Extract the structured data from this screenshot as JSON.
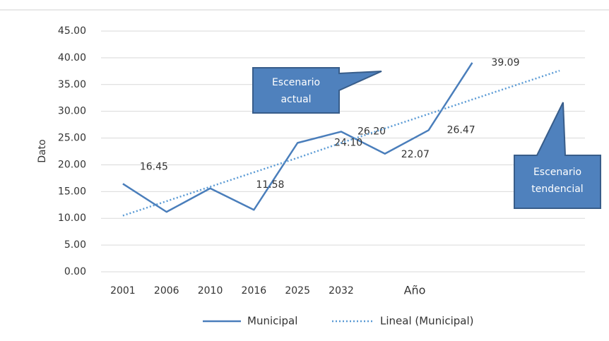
{
  "chart_data": {
    "type": "line",
    "categories": [
      "2001",
      "2006",
      "2010",
      "2016",
      "2025",
      "2032",
      null,
      null,
      null,
      null,
      null
    ],
    "series": [
      {
        "name": "Municipal",
        "color": "#4a7ebb",
        "style": "solid",
        "values": [
          16.45,
          11.2,
          15.6,
          11.58,
          24.1,
          26.2,
          22.07,
          26.47,
          39.09,
          null,
          null
        ],
        "value_labels": [
          "16.45",
          null,
          null,
          "11.58",
          "24.10",
          "26.20",
          "22.07",
          "26.47",
          "39.09",
          null,
          null
        ]
      },
      {
        "name": "Lineal (Municipal)",
        "color": "#5b9bd5",
        "style": "dotted",
        "values": [
          10.5,
          13.2,
          15.9,
          18.6,
          21.3,
          24.1,
          26.8,
          29.5,
          32.2,
          34.9,
          37.6
        ]
      }
    ],
    "ylabel": "Dato",
    "xlabel": "Año",
    "ylim": [
      0,
      45
    ],
    "yticks": [
      {
        "value": 0,
        "label": "0.00"
      },
      {
        "value": 5,
        "label": "5.00"
      },
      {
        "value": 10,
        "label": "10.00"
      },
      {
        "value": 15,
        "label": "15.00"
      },
      {
        "value": 20,
        "label": "20.00"
      },
      {
        "value": 25,
        "label": "25.00"
      },
      {
        "value": 30,
        "label": "30.00"
      },
      {
        "value": 35,
        "label": "35.00"
      },
      {
        "value": 40,
        "label": "40.00"
      },
      {
        "value": 45,
        "label": "45.00"
      }
    ],
    "grid": true,
    "legend": "bottom",
    "annotations": [
      {
        "text": [
          "Escenario",
          "actual"
        ]
      },
      {
        "text": [
          "Escenario",
          "tendencial"
        ]
      }
    ]
  }
}
